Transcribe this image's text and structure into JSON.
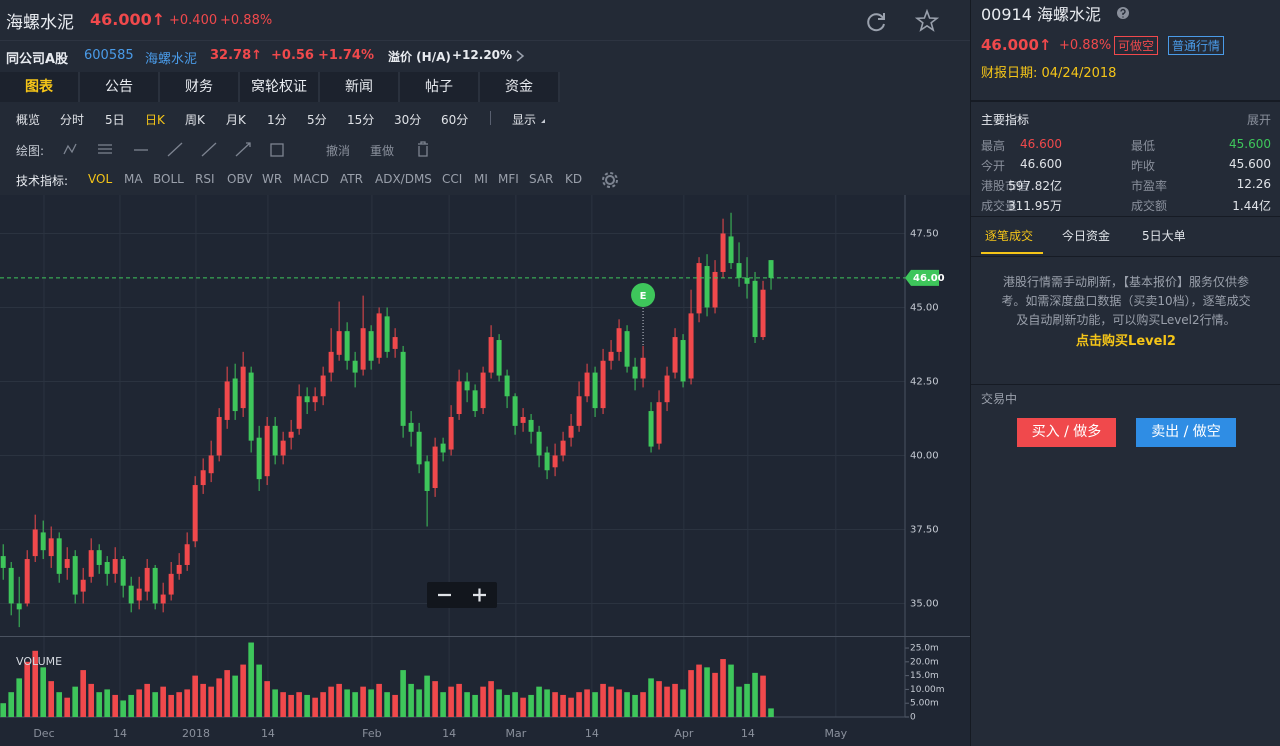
{
  "header": {
    "name": "海螺水泥",
    "price": "46.000↑",
    "change": "+0.400",
    "change_pct": "+0.88%"
  },
  "compare": {
    "label": "同公司A股",
    "code": "600585",
    "name": "海螺水泥",
    "price": "32.78↑",
    "change": "+0.56",
    "change_pct": "+1.74%",
    "premium_label": "溢价 (H/A)",
    "premium": "+12.20%"
  },
  "tabs": {
    "items": [
      "图表",
      "公告",
      "财务",
      "窝轮权证",
      "新闻",
      "帖子",
      "资金"
    ],
    "active": 0
  },
  "periods": {
    "items": [
      "概览",
      "分时",
      "5日",
      "日K",
      "周K",
      "月K",
      "1分",
      "5分",
      "15分",
      "30分",
      "60分",
      "显示"
    ],
    "active": 3
  },
  "drawing": {
    "label": "绘图:",
    "undo": "撤消",
    "redo": "重做"
  },
  "indicators": {
    "label": "技术指标:",
    "items": [
      "VOL",
      "MA",
      "BOLL",
      "RSI",
      "OBV",
      "WR",
      "MACD",
      "ATR",
      "ADX/DMS",
      "CCI",
      "MI",
      "MFI",
      "SAR",
      "KD"
    ],
    "active": 0
  },
  "chart_data": [
    {
      "type": "candlestick",
      "up_color": "#f0494c",
      "down_color": "#3ec65b",
      "grid": true,
      "open": [
        36.6,
        36.2,
        35.0,
        35.0,
        36.6,
        37.4,
        36.6,
        37.2,
        36.2,
        36.6,
        35.4,
        35.9,
        36.8,
        36.4,
        36.0,
        36.5,
        35.6,
        35.1,
        35.4,
        36.2,
        35.0,
        35.3,
        36.0,
        36.3,
        37.1,
        39.0,
        39.4,
        40.0,
        41.2,
        42.6,
        41.6,
        42.8,
        40.6,
        39.3,
        41.0,
        40.0,
        40.6,
        40.9,
        42.0,
        41.8,
        42.0,
        42.8,
        43.4,
        44.2,
        43.2,
        42.9,
        44.2,
        43.3,
        44.7,
        43.6,
        43.5,
        41.1,
        40.8,
        39.8,
        38.9,
        40.4,
        40.2,
        41.4,
        42.5,
        42.2,
        41.6,
        42.8,
        43.9,
        42.7,
        42.0,
        41.1,
        41.2,
        40.8,
        40.1,
        39.6,
        40.0,
        40.6,
        41.0,
        42.0,
        42.8,
        41.6,
        43.2,
        43.5,
        44.2,
        43.0,
        42.6,
        41.5,
        40.4,
        41.8,
        42.8,
        43.9,
        42.6,
        44.8,
        46.4,
        45.0,
        46.2,
        47.4,
        46.5,
        46.0,
        45.9,
        44.0,
        46.6
      ],
      "high": [
        37.0,
        36.4,
        35.9,
        36.8,
        38.0,
        37.8,
        37.6,
        37.4,
        36.9,
        36.8,
        36.2,
        37.2,
        37.0,
        36.6,
        36.9,
        36.6,
        35.9,
        35.9,
        36.5,
        36.3,
        35.7,
        36.4,
        36.7,
        37.4,
        39.3,
        39.9,
        40.5,
        41.6,
        43.0,
        43.1,
        43.5,
        43.0,
        41.0,
        41.3,
        41.3,
        40.8,
        41.2,
        42.4,
        42.3,
        42.3,
        43.0,
        44.3,
        45.2,
        44.5,
        43.5,
        45.4,
        44.4,
        45.0,
        45.0,
        44.3,
        43.7,
        41.5,
        41.1,
        40.0,
        40.6,
        40.6,
        41.7,
        42.9,
        42.8,
        42.4,
        43.0,
        44.4,
        44.1,
        42.9,
        42.1,
        41.6,
        41.4,
        41.0,
        40.3,
        40.4,
        40.8,
        41.4,
        42.5,
        43.1,
        43.0,
        43.6,
        43.9,
        44.6,
        44.4,
        43.3,
        43.7,
        41.8,
        42.2,
        43.0,
        44.3,
        44.1,
        45.6,
        46.7,
        46.8,
        46.6,
        48.0,
        48.2,
        47.2,
        46.7,
        46.2,
        45.9,
        46.6
      ],
      "low": [
        35.8,
        34.6,
        34.2,
        34.9,
        36.4,
        36.5,
        36.2,
        35.7,
        35.8,
        35.0,
        35.0,
        35.7,
        36.0,
        35.6,
        35.7,
        35.2,
        34.7,
        34.8,
        35.1,
        34.8,
        34.7,
        35.1,
        35.8,
        36.1,
        36.9,
        38.7,
        39.1,
        39.8,
        40.9,
        41.2,
        41.3,
        40.1,
        38.8,
        39.0,
        39.7,
        39.7,
        40.2,
        40.7,
        41.4,
        41.5,
        41.7,
        42.5,
        43.2,
        42.9,
        42.3,
        42.7,
        42.9,
        43.1,
        43.3,
        43.3,
        40.6,
        40.3,
        39.4,
        37.6,
        38.6,
        39.8,
        40.0,
        41.2,
        41.8,
        41.3,
        41.4,
        42.6,
        42.5,
        41.6,
        40.7,
        40.8,
        40.4,
        39.6,
        39.2,
        39.3,
        39.8,
        40.3,
        40.8,
        41.8,
        41.3,
        41.4,
        42.9,
        43.2,
        42.8,
        42.2,
        42.3,
        40.1,
        40.2,
        41.5,
        42.6,
        42.3,
        42.4,
        44.5,
        44.7,
        44.8,
        46.0,
        46.3,
        45.7,
        45.3,
        43.8,
        43.9,
        45.6
      ],
      "close": [
        36.2,
        35.0,
        34.8,
        36.5,
        37.5,
        36.8,
        37.2,
        36.0,
        36.5,
        35.3,
        35.8,
        36.8,
        36.3,
        36.0,
        36.5,
        35.6,
        35.0,
        35.5,
        36.2,
        35.0,
        35.3,
        36.0,
        36.3,
        37.0,
        39.0,
        39.5,
        40.0,
        41.3,
        42.5,
        41.5,
        43.0,
        40.5,
        39.2,
        41.0,
        40.0,
        40.5,
        40.8,
        42.0,
        41.8,
        42.0,
        42.7,
        43.5,
        44.2,
        43.2,
        42.8,
        44.3,
        43.2,
        44.8,
        43.5,
        44.0,
        41.0,
        40.8,
        39.7,
        38.8,
        40.3,
        40.1,
        41.3,
        42.5,
        42.2,
        41.5,
        42.8,
        44.0,
        42.7,
        42.0,
        41.0,
        41.3,
        40.8,
        40.0,
        39.5,
        40.0,
        40.5,
        41.0,
        42.0,
        42.8,
        41.6,
        43.2,
        43.5,
        44.3,
        43.0,
        42.6,
        43.3,
        40.3,
        41.8,
        42.7,
        44.0,
        42.5,
        44.8,
        46.5,
        45.0,
        46.2,
        47.5,
        46.5,
        46.0,
        45.8,
        44.0,
        45.6,
        46.0
      ],
      "ylim": [
        33.9,
        48.8
      ],
      "yticks": [
        {
          "value": 35,
          "label": "35.00"
        },
        {
          "value": 37.5,
          "label": "37.50"
        },
        {
          "value": 40,
          "label": "40.00"
        },
        {
          "value": 42.5,
          "label": "42.50"
        },
        {
          "value": 45,
          "label": "45.00"
        },
        {
          "value": 47.5,
          "label": "47.50"
        }
      ],
      "xlim": [
        -0.4,
        112.75
      ],
      "xticks": [
        {
          "value": 5.1,
          "label": "Dec"
        },
        {
          "value": 14.6,
          "label": "14"
        },
        {
          "value": 24.1,
          "label": "2018"
        },
        {
          "value": 33.1,
          "label": "14"
        },
        {
          "value": 46.1,
          "label": "Feb"
        },
        {
          "value": 55.75,
          "label": "14"
        },
        {
          "value": 64.1,
          "label": "Mar"
        },
        {
          "value": 73.6,
          "label": "14"
        },
        {
          "value": 85.1,
          "label": "Apr"
        },
        {
          "value": 93.1,
          "label": "14"
        },
        {
          "value": 104.1,
          "label": "May"
        }
      ],
      "price_line": {
        "value": 46,
        "label": "46.00"
      },
      "events": [
        {
          "x": 80,
          "label": "E"
        }
      ]
    },
    {
      "type": "bar",
      "title": "VOLUME",
      "values": [
        5,
        9,
        14,
        20,
        24,
        18,
        13,
        9,
        7,
        11,
        17,
        12,
        9,
        10,
        8,
        6,
        8,
        10,
        12,
        9,
        11,
        8,
        9,
        10,
        15,
        12,
        11,
        14,
        17,
        15,
        19,
        27,
        19,
        13,
        10,
        9,
        8,
        9,
        8,
        7,
        9,
        11,
        12,
        10,
        9,
        11,
        10,
        12,
        9,
        8,
        17,
        12,
        10,
        15,
        13,
        9,
        11,
        12,
        9,
        8,
        11,
        13,
        10,
        8,
        9,
        7,
        8,
        11,
        10,
        9,
        8,
        7,
        9,
        10,
        9,
        12,
        11,
        10,
        9,
        8,
        9,
        14,
        13,
        11,
        12,
        10,
        17,
        19,
        18,
        16,
        21,
        19,
        11,
        12,
        16,
        15,
        3.12
      ],
      "ylim": [
        0,
        29
      ],
      "yticks": [
        0,
        {
          "value": 5,
          "label": "5.00m"
        },
        {
          "value": 10,
          "label": "10.00m"
        },
        {
          "value": 15,
          "label": "15.0m"
        },
        {
          "value": 20,
          "label": "20.0m"
        },
        {
          "value": 25,
          "label": "25.0m"
        }
      ]
    }
  ],
  "side": {
    "title": "00914 海螺水泥",
    "price": "46.000↑",
    "change_pct": "+0.88%",
    "short_tag": "可做空",
    "quote_tag": "普通行情",
    "report_date": "财报日期: 04/24/2018",
    "metrics_title": "主要指标",
    "expand": "展开",
    "stats": [
      {
        "label": "最高",
        "value": "46.600",
        "color": "#f0494c"
      },
      {
        "label": "最低",
        "value": "45.600",
        "color": "#3ec65b"
      },
      {
        "label": "今开",
        "value": "46.600"
      },
      {
        "label": "昨收",
        "value": "45.600"
      },
      {
        "label": "港股市值",
        "value": "597.82亿"
      },
      {
        "label": "市盈率",
        "value": "12.26"
      },
      {
        "label": "成交量",
        "value": "311.95万"
      },
      {
        "label": "成交额",
        "value": "1.44亿"
      }
    ],
    "tabs": [
      "逐笔成交",
      "今日资金",
      "5日大单"
    ],
    "notice": "港股行情需手动刷新，【基本报价】服务仅供参考。如需深度盘口数据（买卖10档），逐笔成交及自动刷新功能，可以购买Level2行情。",
    "link": "点击购买Level2",
    "status": "交易中",
    "buy": "买入 / 做多",
    "sell": "卖出 / 做空"
  }
}
